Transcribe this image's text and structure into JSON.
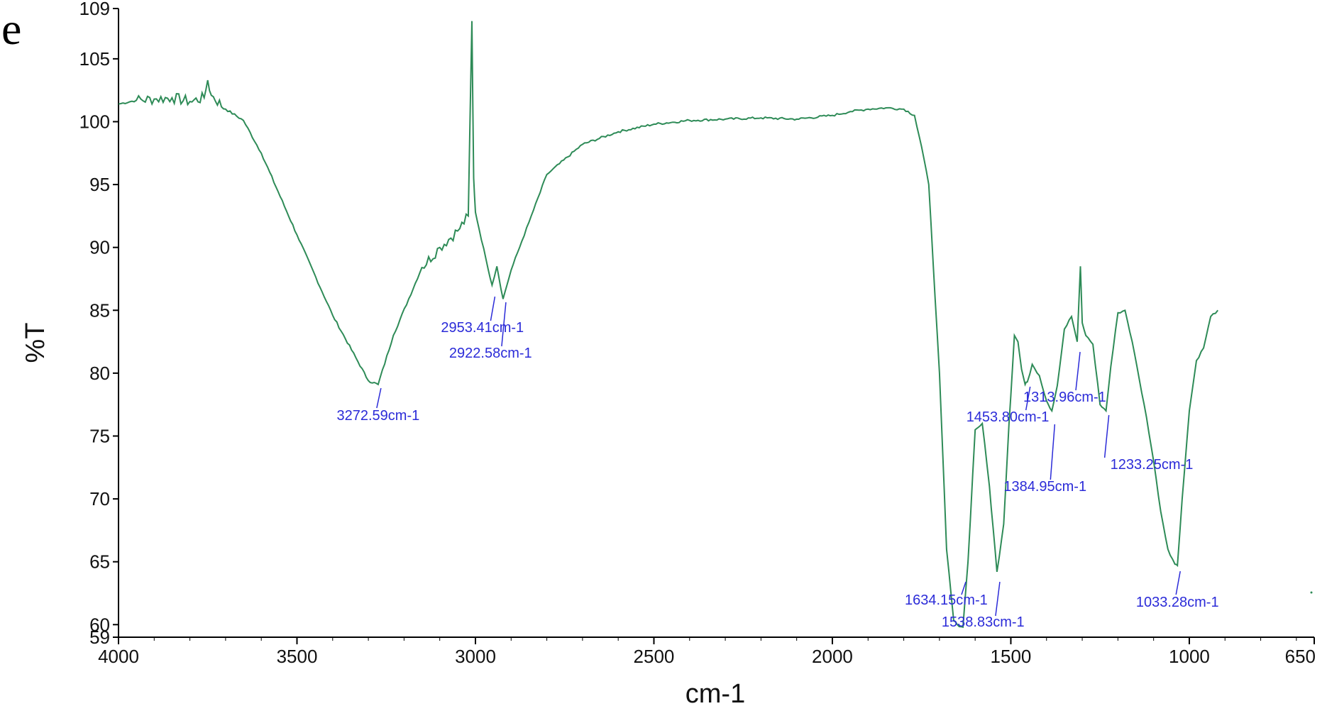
{
  "panel_label": "e",
  "colors": {
    "trace": "#2e8b57",
    "peak_label": "#2b2bd8",
    "axis": "#000000"
  },
  "chart_data": {
    "type": "line",
    "title": "",
    "xlabel": "cm-1",
    "ylabel": "%T",
    "xlim": [
      4000,
      650
    ],
    "x_reversed": true,
    "ylim": [
      59,
      109
    ],
    "x_ticks": [
      4000,
      3500,
      3000,
      2500,
      2000,
      1500,
      1000,
      650
    ],
    "y_ticks": [
      59,
      60,
      65,
      70,
      75,
      80,
      85,
      90,
      95,
      100,
      105,
      109
    ],
    "grid": false,
    "legend": "none",
    "series": [
      {
        "x": [
          4000,
          3950,
          3900,
          3850,
          3800,
          3760,
          3750,
          3740,
          3700,
          3650,
          3600,
          3500,
          3400,
          3300,
          3272.59,
          3230,
          3150,
          3100,
          3050,
          3020,
          3010,
          3005,
          3000,
          2990,
          2970,
          2953.41,
          2940,
          2922.58,
          2900,
          2870,
          2850,
          2800,
          2700,
          2600,
          2500,
          2400,
          2300,
          2200,
          2100,
          2000,
          1950,
          1900,
          1850,
          1800,
          1770,
          1750,
          1730,
          1700,
          1680,
          1660,
          1650,
          1634.15,
          1620,
          1600,
          1580,
          1560,
          1538.83,
          1520,
          1505,
          1490,
          1480,
          1470,
          1460,
          1453.8,
          1440,
          1420,
          1400,
          1384.95,
          1370,
          1350,
          1330,
          1313.96,
          1305,
          1300,
          1290,
          1270,
          1250,
          1233.25,
          1220,
          1200,
          1180,
          1160,
          1140,
          1120,
          1100,
          1080,
          1060,
          1040,
          1033.28,
          1020,
          1000,
          980,
          960,
          940,
          920
        ],
        "y": [
          101.4,
          101.7,
          101.8,
          101.9,
          101.6,
          101.9,
          103.3,
          102.1,
          101.0,
          100.1,
          97.5,
          91.0,
          84.6,
          79.4,
          79.1,
          83.0,
          88.4,
          90.0,
          91.3,
          92.5,
          108.0,
          95.5,
          92.8,
          91.5,
          89.0,
          87.0,
          88.5,
          85.9,
          88.2,
          90.5,
          92.0,
          95.8,
          98.2,
          99.2,
          99.8,
          100.1,
          100.2,
          100.3,
          100.2,
          100.5,
          100.8,
          101.0,
          101.1,
          101.0,
          100.5,
          98.0,
          95.0,
          80.0,
          66.0,
          60.3,
          60.0,
          59.8,
          65.0,
          75.5,
          76.0,
          71.0,
          64.2,
          68.0,
          76.0,
          83.0,
          82.5,
          80.3,
          79.1,
          79.3,
          80.7,
          79.8,
          77.8,
          77.0,
          79.0,
          83.5,
          84.5,
          82.5,
          88.5,
          84.0,
          83.0,
          82.3,
          77.5,
          77.0,
          80.5,
          84.8,
          85.0,
          82.5,
          79.5,
          76.5,
          73.0,
          69.0,
          66.0,
          64.8,
          64.7,
          70.0,
          77.0,
          81.0,
          82.0,
          84.5,
          85.0
        ]
      }
    ],
    "annotations": [
      {
        "text": "3272.59cm-1",
        "x": 3272.59
      },
      {
        "text": "2953.41cm-1",
        "x": 2953.41
      },
      {
        "text": "2922.58cm-1",
        "x": 2922.58
      },
      {
        "text": "1634.15cm-1",
        "x": 1634.15
      },
      {
        "text": "1538.83cm-1",
        "x": 1538.83
      },
      {
        "text": "1453.80cm-1",
        "x": 1453.8
      },
      {
        "text": "1384.95cm-1",
        "x": 1384.95
      },
      {
        "text": "1313.96cm-1",
        "x": 1313.96
      },
      {
        "text": "1233.25cm-1",
        "x": 1233.25
      },
      {
        "text": "1033.28cm-1",
        "x": 1033.28
      }
    ]
  }
}
